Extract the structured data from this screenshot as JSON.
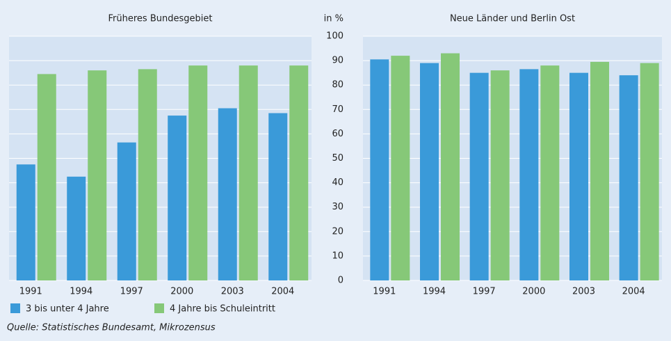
{
  "chart_data": {
    "type": "bar",
    "ylabel": "in %",
    "ylim": [
      0,
      100
    ],
    "yticks": [
      0,
      10,
      20,
      30,
      40,
      50,
      60,
      70,
      80,
      90,
      100
    ],
    "grid": true,
    "legend": [
      {
        "name": "3 bis unter 4 Jahre",
        "color": "#3a9ad9"
      },
      {
        "name": "4 Jahre bis Schuleintritt",
        "color": "#86c878"
      }
    ],
    "source": "Quelle: Statistisches Bundesamt, Mikrozensus",
    "panels": [
      {
        "title": "Früheres Bundesgebiet",
        "categories": [
          "1991",
          "1994",
          "1997",
          "2000",
          "2003",
          "2004"
        ],
        "series": [
          {
            "values": [
              47.5,
              42.5,
              56.5,
              67.5,
              70.5,
              68.5
            ]
          },
          {
            "values": [
              84.5,
              86,
              86.5,
              88,
              88,
              88
            ]
          }
        ]
      },
      {
        "title": "Neue Länder und Berlin Ost",
        "categories": [
          "1991",
          "1994",
          "1997",
          "2000",
          "2003",
          "2004"
        ],
        "series": [
          {
            "values": [
              90.5,
              89,
              85,
              86.5,
              85,
              84
            ]
          },
          {
            "values": [
              92,
              93,
              86,
              88,
              89.5,
              89
            ]
          }
        ]
      }
    ]
  }
}
